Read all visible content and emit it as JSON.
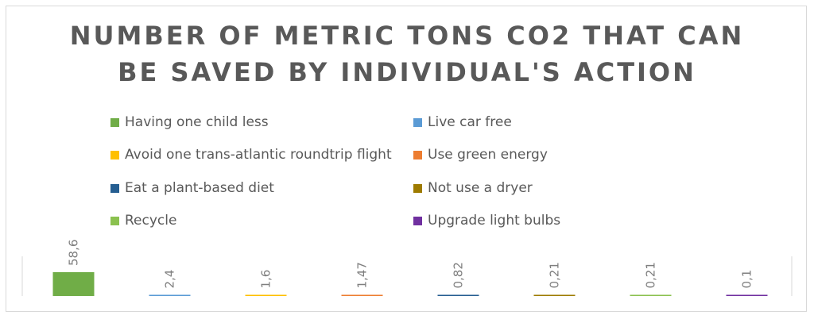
{
  "chart_data": {
    "type": "bar",
    "title": "NUMBER OF METRIC TONS CO2 THAT CAN BE SAVED BY INDIVIDUAL'S ACTION",
    "title_lines": [
      "NUMBER OF METRIC TONS CO2 THAT CAN",
      "BE SAVED BY INDIVIDUAL'S ACTION"
    ],
    "xlabel": "",
    "ylabel": "",
    "legend_position": "top",
    "grid": false,
    "series": [
      {
        "name": "Having one child less",
        "value": 58.6,
        "label": "58,6",
        "color": "#70ad47"
      },
      {
        "name": "Live car free",
        "value": 2.4,
        "label": "2,4",
        "color": "#5b9bd5"
      },
      {
        "name": "Avoid one trans-atlantic roundtrip flight",
        "value": 1.6,
        "label": "1,6",
        "color": "#ffc000"
      },
      {
        "name": "Use green energy",
        "value": 1.47,
        "label": "1,47",
        "color": "#ed7d31"
      },
      {
        "name": "Eat a plant-based diet",
        "value": 0.82,
        "label": "0,82",
        "color": "#255e91"
      },
      {
        "name": "Not use a dryer",
        "value": 0.21,
        "label": "0,21",
        "color": "#9e7b00"
      },
      {
        "name": "Recycle",
        "value": 0.21,
        "label": "0,21",
        "color": "#8bc14f"
      },
      {
        "name": "Upgrade light bulbs",
        "value": 0.1,
        "label": "0,1",
        "color": "#7030a0"
      }
    ],
    "ylim": [
      0,
      58.6
    ]
  }
}
